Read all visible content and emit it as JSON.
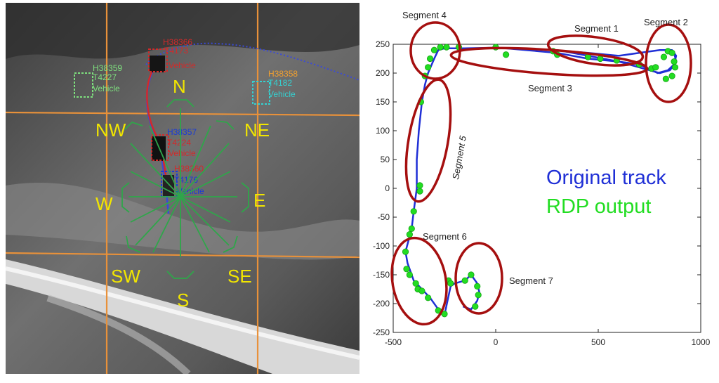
{
  "left": {
    "directions": {
      "n": "N",
      "ne": "NE",
      "e": "E",
      "se": "SE",
      "s": "S",
      "sw": "SW",
      "w": "W",
      "nw": "NW"
    },
    "detections": [
      {
        "id": "H38366",
        "track": "T4173",
        "cls": "Vehicle",
        "color": "#d22a2a"
      },
      {
        "id": "H38359",
        "track": "T4227",
        "cls": "Vehicle",
        "color": "#7ee07e"
      },
      {
        "id": "H38358",
        "track": "T4182",
        "cls": "Vehicle",
        "color": "#35d0d0"
      },
      {
        "id": "H38357",
        "track": "T4224",
        "cls": "Vehicle",
        "color": "#1a3bd6"
      },
      {
        "id": "H38360",
        "track": "T4176",
        "cls": "Vehicle",
        "color": "#1a3bd6"
      }
    ],
    "colors": {
      "grid": "#e8913a",
      "compass": "#2fa64a",
      "labels": "#f2e600"
    }
  },
  "right": {
    "segments": {
      "s1": "Segment 1",
      "s2": "Segment 2",
      "s3": "Segment 3",
      "s4": "Segment 4",
      "s5": "Segment 5",
      "s6": "Segment 6",
      "s7": "Segment 7"
    },
    "legend": {
      "original": "Original track",
      "rdp": "RDP output"
    },
    "colors": {
      "track": "#1f2fd6",
      "rdp": "#22dd22",
      "ellipse": "#a50f0f"
    }
  },
  "chart_data": {
    "type": "scatter",
    "xlim": [
      -500,
      1000
    ],
    "ylim": [
      -250,
      250
    ],
    "xticks": [
      -500,
      0,
      500,
      1000
    ],
    "yticks": [
      -250,
      -200,
      -150,
      -100,
      -50,
      0,
      50,
      100,
      150,
      200,
      250
    ],
    "grid": false,
    "series": [
      {
        "name": "Original track",
        "style": "line",
        "points": [
          [
            -440,
            -110
          ],
          [
            -410,
            -70
          ],
          [
            -400,
            -40
          ],
          [
            -385,
            0
          ],
          [
            -385,
            50
          ],
          [
            -375,
            100
          ],
          [
            -360,
            150
          ],
          [
            -345,
            180
          ],
          [
            -330,
            200
          ],
          [
            -300,
            225
          ],
          [
            -280,
            240
          ],
          [
            -250,
            243
          ],
          [
            -150,
            243
          ],
          [
            0,
            244
          ],
          [
            50,
            243
          ],
          [
            300,
            235
          ],
          [
            450,
            225
          ],
          [
            600,
            220
          ],
          [
            700,
            215
          ],
          [
            760,
            205
          ],
          [
            790,
            200
          ],
          [
            840,
            205
          ],
          [
            870,
            215
          ],
          [
            880,
            230
          ],
          [
            860,
            240
          ],
          [
            800,
            240
          ],
          [
            700,
            235
          ],
          [
            600,
            230
          ],
          [
            450,
            235
          ],
          [
            350,
            238
          ],
          [
            280,
            240
          ],
          [
            300,
            240
          ],
          [
            450,
            230
          ],
          [
            600,
            220
          ],
          [
            750,
            205
          ],
          [
            800,
            200
          ],
          [
            850,
            205
          ],
          [
            880,
            220
          ],
          [
            870,
            235
          ],
          [
            840,
            240
          ]
        ]
      },
      {
        "name": "Original track",
        "style": "line",
        "points": [
          [
            -440,
            -110
          ],
          [
            -430,
            -130
          ],
          [
            -400,
            -160
          ],
          [
            -360,
            -175
          ],
          [
            -320,
            -190
          ],
          [
            -280,
            -210
          ],
          [
            -250,
            -220
          ],
          [
            -220,
            -170
          ],
          [
            -200,
            -165
          ],
          [
            -150,
            -160
          ],
          [
            -120,
            -150
          ],
          [
            -90,
            -165
          ],
          [
            -80,
            -180
          ],
          [
            -90,
            -195
          ],
          [
            -120,
            -210
          ],
          [
            -160,
            -205
          ]
        ]
      },
      {
        "name": "RDP output",
        "style": "markers",
        "points": [
          [
            -410,
            -70
          ],
          [
            -420,
            -80
          ],
          [
            -400,
            -40
          ],
          [
            -370,
            -5
          ],
          [
            -370,
            5
          ],
          [
            -365,
            150
          ],
          [
            -345,
            195
          ],
          [
            -330,
            210
          ],
          [
            -320,
            225
          ],
          [
            -300,
            240
          ],
          [
            -270,
            245
          ],
          [
            -240,
            245
          ],
          [
            -180,
            245
          ],
          [
            0,
            245
          ],
          [
            50,
            232
          ],
          [
            280,
            238
          ],
          [
            300,
            232
          ],
          [
            450,
            228
          ],
          [
            510,
            225
          ],
          [
            590,
            222
          ],
          [
            700,
            215
          ],
          [
            760,
            208
          ],
          [
            780,
            210
          ],
          [
            820,
            228
          ],
          [
            840,
            238
          ],
          [
            860,
            235
          ],
          [
            870,
            220
          ],
          [
            875,
            210
          ],
          [
            860,
            195
          ],
          [
            830,
            190
          ],
          [
            -440,
            -110
          ],
          [
            -435,
            -140
          ],
          [
            -420,
            -150
          ],
          [
            -390,
            -165
          ],
          [
            -380,
            -175
          ],
          [
            -360,
            -178
          ],
          [
            -330,
            -190
          ],
          [
            -280,
            -212
          ],
          [
            -250,
            -218
          ],
          [
            -230,
            -160
          ],
          [
            -220,
            -165
          ],
          [
            -150,
            -160
          ],
          [
            -120,
            -150
          ],
          [
            -90,
            -170
          ],
          [
            -85,
            -185
          ],
          [
            -100,
            -205
          ]
        ]
      }
    ]
  }
}
